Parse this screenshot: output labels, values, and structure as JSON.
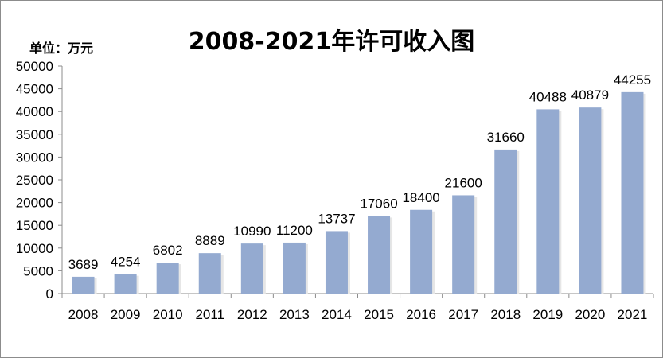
{
  "chart_data": {
    "type": "bar",
    "title": "2008-2021年许可收入图",
    "unit_label": "单位：万元",
    "categories": [
      "2008",
      "2009",
      "2010",
      "2011",
      "2012",
      "2013",
      "2014",
      "2015",
      "2016",
      "2017",
      "2018",
      "2019",
      "2020",
      "2021"
    ],
    "values": [
      3689,
      4254,
      6802,
      8889,
      10990,
      11200,
      13737,
      17060,
      18400,
      21600,
      31660,
      40488,
      40879,
      44255
    ],
    "ylim": [
      0,
      50000
    ],
    "yticks": [
      0,
      5000,
      10000,
      15000,
      20000,
      25000,
      30000,
      35000,
      40000,
      45000,
      50000
    ],
    "grid": false,
    "legend": "none",
    "bar_color": "#94aad0"
  }
}
